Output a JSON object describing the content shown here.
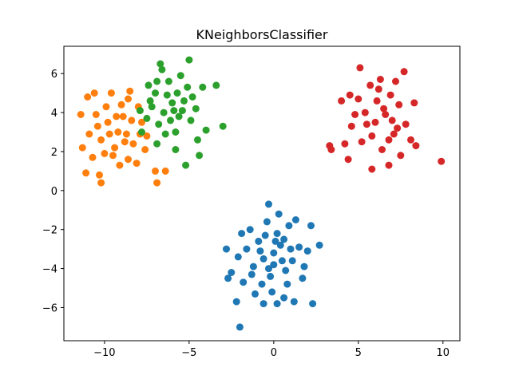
{
  "chart_data": {
    "type": "scatter",
    "title": "KNeighborsClassifier",
    "xlabel": "",
    "ylabel": "",
    "xlim": [
      -12.4,
      11.0
    ],
    "ylim": [
      -7.7,
      7.4
    ],
    "xticks": [
      -10,
      -5,
      0,
      5,
      10
    ],
    "yticks": [
      -6,
      -4,
      -2,
      0,
      2,
      4,
      6
    ],
    "grid": false,
    "series": [
      {
        "color": "#1f77b4",
        "points": [
          [
            0.0,
            -3.2
          ],
          [
            -0.6,
            -3.5
          ],
          [
            0.4,
            -2.8
          ],
          [
            -1.2,
            -3.9
          ],
          [
            1.1,
            -3.6
          ],
          [
            -0.2,
            -4.4
          ],
          [
            0.7,
            -4.1
          ],
          [
            -0.9,
            -2.6
          ],
          [
            0.2,
            -2.2
          ],
          [
            -1.6,
            -3.0
          ],
          [
            1.5,
            -2.9
          ],
          [
            -0.4,
            -1.6
          ],
          [
            0.9,
            -1.8
          ],
          [
            -1.8,
            -4.7
          ],
          [
            1.7,
            -4.5
          ],
          [
            -0.1,
            -5.2
          ],
          [
            0.6,
            -5.5
          ],
          [
            -1.1,
            -5.3
          ],
          [
            -2.1,
            -3.4
          ],
          [
            2.0,
            -3.1
          ],
          [
            -2.5,
            -4.2
          ],
          [
            2.3,
            -5.8
          ],
          [
            -2.0,
            -7.0
          ],
          [
            -2.2,
            -5.7
          ],
          [
            -0.3,
            -0.7
          ],
          [
            0.3,
            -1.2
          ],
          [
            1.3,
            -1.5
          ],
          [
            2.7,
            -2.8
          ],
          [
            2.2,
            -1.8
          ],
          [
            -2.8,
            -3.0
          ],
          [
            -2.7,
            -4.5
          ],
          [
            1.2,
            -5.7
          ],
          [
            0.2,
            -5.8
          ],
          [
            -0.6,
            -5.8
          ],
          [
            -1.4,
            -2.0
          ],
          [
            0.1,
            -2.6
          ],
          [
            -0.8,
            -3.1
          ],
          [
            0.5,
            -3.6
          ],
          [
            -0.3,
            -4.0
          ],
          [
            1.0,
            -3.0
          ],
          [
            -1.3,
            -4.3
          ],
          [
            0.8,
            -4.8
          ],
          [
            -0.7,
            -4.8
          ],
          [
            1.8,
            -3.9
          ],
          [
            -1.9,
            -2.2
          ],
          [
            0.0,
            -3.8
          ],
          [
            -0.5,
            -2.3
          ],
          [
            0.6,
            -2.5
          ]
        ]
      },
      {
        "color": "#ff7f0e",
        "points": [
          [
            -9.2,
            3.0
          ],
          [
            -8.8,
            2.5
          ],
          [
            -9.8,
            3.5
          ],
          [
            -8.4,
            3.6
          ],
          [
            -10.2,
            2.6
          ],
          [
            -9.5,
            1.8
          ],
          [
            -8.6,
            1.6
          ],
          [
            -10.5,
            3.9
          ],
          [
            -9.0,
            4.4
          ],
          [
            -7.9,
            2.9
          ],
          [
            -7.6,
            2.1
          ],
          [
            -10.9,
            2.9
          ],
          [
            -11.4,
            3.9
          ],
          [
            -11.0,
            4.8
          ],
          [
            -10.6,
            5.0
          ],
          [
            -9.6,
            5.0
          ],
          [
            -8.5,
            5.1
          ],
          [
            -11.1,
            0.9
          ],
          [
            -10.3,
            0.8
          ],
          [
            -10.2,
            0.4
          ],
          [
            -7.0,
            1.0
          ],
          [
            -6.9,
            0.4
          ],
          [
            -6.4,
            1.0
          ],
          [
            -8.0,
            4.3
          ],
          [
            -9.4,
            2.2
          ],
          [
            -10.0,
            1.9
          ],
          [
            -8.9,
            3.8
          ],
          [
            -9.9,
            4.3
          ],
          [
            -7.8,
            3.5
          ],
          [
            -8.3,
            2.4
          ],
          [
            -9.1,
            1.3
          ],
          [
            -10.7,
            1.7
          ],
          [
            -8.1,
            1.4
          ],
          [
            -9.7,
            2.9
          ],
          [
            -8.7,
            2.9
          ],
          [
            -10.4,
            3.3
          ],
          [
            -7.5,
            2.8
          ],
          [
            -8.6,
            4.7
          ],
          [
            -11.3,
            2.2
          ],
          [
            -9.3,
            3.8
          ]
        ]
      },
      {
        "color": "#2ca02c",
        "points": [
          [
            -6.5,
            4.0
          ],
          [
            -6.0,
            4.5
          ],
          [
            -7.2,
            4.3
          ],
          [
            -5.6,
            3.8
          ],
          [
            -6.8,
            3.4
          ],
          [
            -5.8,
            3.0
          ],
          [
            -7.5,
            3.7
          ],
          [
            -6.3,
            4.9
          ],
          [
            -5.3,
            4.6
          ],
          [
            -7.0,
            5.0
          ],
          [
            -4.9,
            3.6
          ],
          [
            -5.1,
            5.3
          ],
          [
            -6.2,
            5.6
          ],
          [
            -6.6,
            6.2
          ],
          [
            -5.0,
            6.7
          ],
          [
            -4.2,
            5.3
          ],
          [
            -4.0,
            3.1
          ],
          [
            -3.4,
            5.4
          ],
          [
            -3.0,
            3.3
          ],
          [
            -4.4,
            1.8
          ],
          [
            -5.2,
            1.3
          ],
          [
            -5.8,
            2.1
          ],
          [
            -6.9,
            2.4
          ],
          [
            -7.8,
            3.0
          ],
          [
            -7.9,
            4.1
          ],
          [
            -7.4,
            5.4
          ],
          [
            -6.7,
            6.5
          ],
          [
            -5.5,
            5.9
          ],
          [
            -4.6,
            4.2
          ],
          [
            -4.5,
            2.6
          ],
          [
            -6.1,
            3.6
          ],
          [
            -5.4,
            4.1
          ],
          [
            -7.3,
            4.6
          ],
          [
            -6.4,
            2.9
          ],
          [
            -5.7,
            5.0
          ],
          [
            -4.8,
            4.8
          ],
          [
            -6.9,
            5.6
          ],
          [
            -5.9,
            4.1
          ]
        ]
      },
      {
        "color": "#d62728",
        "points": [
          [
            6.0,
            3.5
          ],
          [
            6.5,
            4.2
          ],
          [
            5.4,
            4.0
          ],
          [
            7.0,
            3.6
          ],
          [
            5.8,
            2.8
          ],
          [
            6.8,
            2.6
          ],
          [
            5.0,
            4.7
          ],
          [
            6.2,
            5.2
          ],
          [
            7.4,
            4.4
          ],
          [
            4.6,
            3.3
          ],
          [
            4.2,
            2.4
          ],
          [
            4.0,
            4.6
          ],
          [
            5.1,
            6.3
          ],
          [
            6.3,
            5.7
          ],
          [
            7.2,
            5.6
          ],
          [
            7.7,
            6.1
          ],
          [
            8.3,
            4.5
          ],
          [
            8.1,
            2.6
          ],
          [
            8.4,
            2.3
          ],
          [
            9.9,
            1.5
          ],
          [
            7.5,
            1.8
          ],
          [
            6.8,
            1.3
          ],
          [
            5.8,
            1.1
          ],
          [
            4.4,
            1.6
          ],
          [
            3.4,
            2.1
          ],
          [
            3.3,
            2.3
          ],
          [
            5.5,
            3.4
          ],
          [
            6.6,
            3.9
          ],
          [
            7.1,
            2.9
          ],
          [
            5.2,
            2.5
          ],
          [
            6.1,
            4.6
          ],
          [
            4.8,
            3.9
          ],
          [
            7.8,
            3.4
          ],
          [
            5.7,
            5.4
          ],
          [
            6.9,
            4.9
          ],
          [
            4.5,
            4.9
          ],
          [
            6.4,
            2.1
          ],
          [
            7.3,
            3.2
          ]
        ]
      }
    ]
  }
}
